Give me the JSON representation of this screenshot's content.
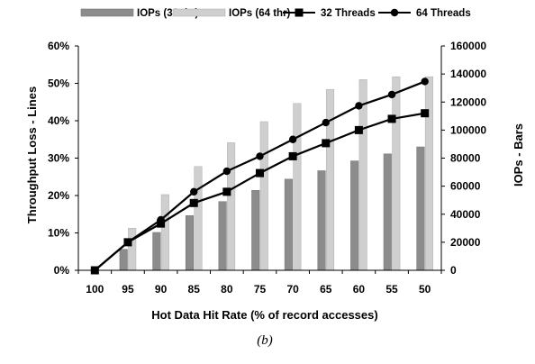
{
  "chart_data": {
    "type": "bar+line",
    "categories": [
      "100",
      "95",
      "90",
      "85",
      "80",
      "75",
      "70",
      "65",
      "60",
      "55",
      "50"
    ],
    "bar_series": [
      {
        "name": "IOPs (32 thr)",
        "color": "#8c8c8c",
        "values": [
          0,
          15000,
          27000,
          39000,
          49000,
          57000,
          65000,
          71000,
          78000,
          83000,
          88000
        ]
      },
      {
        "name": "IOPs (64 thr)",
        "color": "#cfcfcf",
        "values": [
          0,
          30000,
          54000,
          74000,
          91000,
          106000,
          119000,
          129000,
          136000,
          138000,
          138000
        ]
      }
    ],
    "line_series": [
      {
        "name": "32 Threads",
        "marker": "square",
        "color": "#000000",
        "values": [
          0,
          7.5,
          12.5,
          18,
          21,
          26,
          30.5,
          34,
          37.5,
          40.5,
          42
        ]
      },
      {
        "name": "64 Threads",
        "marker": "circle",
        "color": "#000000",
        "values": [
          0,
          7.5,
          13.5,
          21,
          26.5,
          30.5,
          35,
          39.5,
          44,
          47,
          50.5
        ]
      }
    ],
    "xlabel": "Hot Data Hit Rate (% of record accesses)",
    "ylabel_left": "Throughput Loss - Lines",
    "ylabel_right": "IOPs - Bars",
    "ylim_left": [
      0,
      60
    ],
    "ylim_right": [
      0,
      160000
    ],
    "yticks_left": [
      "0%",
      "10%",
      "20%",
      "30%",
      "40%",
      "50%",
      "60%"
    ],
    "yticks_right": [
      "0",
      "20000",
      "40000",
      "60000",
      "80000",
      "100000",
      "120000",
      "140000",
      "160000"
    ],
    "legend_position": "top",
    "grid": false
  },
  "caption": "(b)"
}
